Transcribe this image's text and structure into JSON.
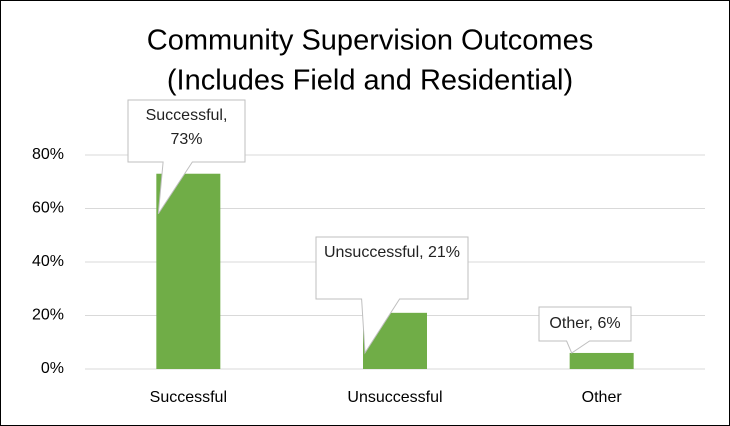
{
  "chart_data": {
    "type": "bar",
    "title": [
      "Community Supervision Outcomes",
      "(Includes Field and Residential)"
    ],
    "categories": [
      "Successful",
      "Unsuccessful",
      "Other"
    ],
    "values": [
      73,
      21,
      6
    ],
    "value_labels": [
      "Successful, 73%",
      "Unsuccessful, 21%",
      "Other, 6%"
    ],
    "color": "#70ad47",
    "ylim": [
      0,
      80
    ],
    "yticks": [
      {
        "value": 0,
        "label": "0%"
      },
      {
        "value": 20,
        "label": "20%"
      },
      {
        "value": 40,
        "label": "40%"
      },
      {
        "value": 60,
        "label": "60%"
      },
      {
        "value": 80,
        "label": "80%"
      }
    ],
    "grid": true
  }
}
